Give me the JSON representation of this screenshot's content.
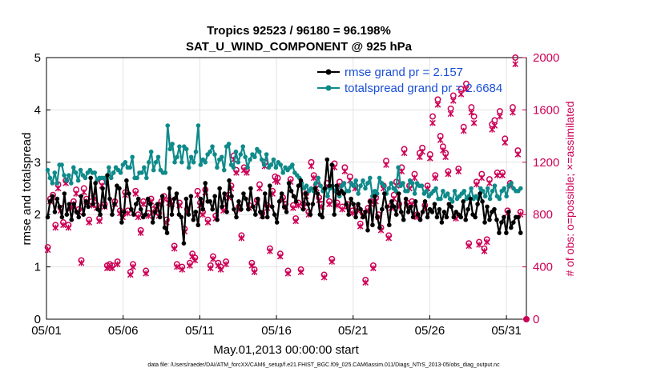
{
  "chart_data": {
    "type": "line",
    "title": "Tropics 92523 / 96180 = 96.198%",
    "subtitle": "SAT_U_WIND_COMPONENT @ 925 hPa",
    "xlabel": "May.01,2013 00:00:00 start",
    "ylabel": "rmse and totalspread",
    "y2label": "# of obs: o=possible; ×=assimilated",
    "xlim": [
      0,
      31.3
    ],
    "ylim": [
      0,
      5
    ],
    "y2lim": [
      0,
      2000
    ],
    "xticks": [
      0,
      5,
      10,
      15,
      20,
      25,
      30
    ],
    "xtick_labels": [
      "05/01",
      "05/06",
      "05/11",
      "05/16",
      "05/21",
      "05/26",
      "05/31"
    ],
    "yticks": [
      "0",
      "1",
      "2",
      "3",
      "4",
      "5"
    ],
    "y2ticks": [
      "0",
      "400",
      "800",
      "1200",
      "1600",
      "2000"
    ],
    "footnote": "data file: /Users/raeder/DAI/ATM_forcXX/CAM6_setup/f.e21.FHIST_BGC.f09_025.CAM6assim.011/Diags_NTrS_2013-05/obs_diag_output.nc",
    "grid": true,
    "legend_position": "top-right",
    "colors": {
      "rmse": "#000000",
      "spread": "#0f8a8a",
      "obs": "#cc0055",
      "legend_text": "#1a4fd6"
    },
    "series": [
      {
        "name": "rmse grand pr = 2.157",
        "axis": "left",
        "values": [
          1.95,
          2.25,
          2.35,
          2.05,
          2.3,
          2.15,
          1.95,
          2.4,
          2.0,
          2.2,
          1.9,
          2.2,
          2.05,
          1.95,
          2.35,
          2.0,
          2.25,
          2.15,
          2.7,
          2.2,
          2.6,
          2.1,
          2.0,
          2.5,
          2.15,
          2.75,
          2.3,
          2.0,
          2.2,
          2.55,
          2.5,
          1.85,
          2.05,
          2.65,
          2.4,
          2.1,
          2.0,
          2.2,
          2.3,
          2.1,
          1.95,
          2.0,
          2.3,
          2.2,
          1.85,
          2.05,
          2.2,
          1.95,
          2.35,
          1.75,
          1.65,
          2.5,
          2.0,
          2.3,
          2.4,
          2.0,
          1.95,
          1.45,
          2.3,
          2.0,
          2.35,
          1.9,
          2.05,
          1.8,
          2.3,
          2.1,
          2.6,
          2.25,
          2.25,
          2.1,
          2.35,
          1.9,
          2.5,
          2.15,
          2.4,
          2.05,
          2.65,
          2.35,
          2.1,
          1.95,
          2.25,
          2.1,
          2.4,
          2.3,
          2.1,
          2.5,
          2.15,
          2.0,
          2.3,
          2.05,
          1.95,
          2.4,
          1.95,
          2.55,
          2.15,
          2.0,
          1.85,
          2.25,
          2.4,
          2.15,
          2.05,
          2.6,
          2.45,
          2.35,
          2.25,
          2.55,
          2.65,
          2.1,
          2.4,
          2.2,
          2.0,
          2.2,
          2.5,
          2.4,
          2.0,
          1.95,
          2.5,
          3.05,
          2.55,
          2.95,
          2.0,
          2.55,
          2.4,
          2.45,
          2.4,
          2.2,
          2.0,
          2.3,
          2.2,
          1.95,
          2.2,
          2.1,
          1.95,
          2.05,
          1.7,
          2.25,
          1.8,
          2.35,
          1.95,
          1.75,
          2.1,
          2.4,
          2.15,
          1.8,
          2.25,
          2.15,
          2.0,
          2.4,
          2.05,
          1.9,
          2.3,
          2.05,
          2.15,
          1.95,
          2.25,
          2.0,
          1.9,
          2.05,
          2.25,
          1.95,
          2.1,
          2.05,
          2.2,
          1.95,
          2.1,
          1.85,
          2.05,
          1.95,
          2.2,
          2.15,
          1.95,
          2.05,
          2.0,
          1.95,
          2.25,
          1.9,
          2.1,
          2.3,
          2.0,
          1.95,
          2.2,
          2.4,
          2.25,
          1.85,
          2.15,
          1.9,
          2.05,
          2.1,
          1.9,
          1.65,
          1.85,
          1.95,
          1.65,
          2.05,
          1.75,
          1.85,
          1.95,
          1.95,
          1.65
        ]
      },
      {
        "name": "totalspread grand pr = 2.6684",
        "axis": "left",
        "values": [
          2.85,
          2.7,
          2.6,
          2.8,
          2.6,
          2.95,
          2.95,
          2.75,
          2.65,
          2.75,
          2.6,
          2.9,
          2.8,
          2.65,
          2.85,
          2.75,
          2.7,
          2.8,
          2.85,
          2.8,
          2.8,
          2.65,
          2.7,
          2.7,
          2.7,
          2.6,
          2.9,
          2.7,
          2.8,
          2.9,
          2.85,
          2.8,
          2.95,
          3.0,
          2.9,
          2.9,
          3.1,
          2.7,
          2.7,
          2.8,
          2.8,
          2.9,
          2.7,
          3.0,
          3.2,
          2.85,
          3.0,
          3.1,
          2.85,
          2.8,
          2.8,
          3.7,
          3.25,
          3.35,
          3.0,
          3.1,
          3.3,
          3.0,
          3.3,
          3.25,
          2.9,
          3.1,
          3.0,
          3.2,
          3.7,
          2.95,
          3.05,
          3.0,
          3.15,
          3.2,
          3.3,
          3.15,
          2.9,
          3.05,
          3.1,
          2.85,
          3.3,
          3.35,
          2.95,
          2.9,
          3.2,
          3.0,
          3.15,
          3.3,
          3.1,
          2.9,
          3.05,
          3.15,
          3.1,
          3.25,
          3.2,
          3.05,
          2.95,
          3.15,
          2.9,
          2.95,
          3.05,
          2.9,
          3.0,
          2.95,
          2.8,
          2.9,
          2.85,
          2.9,
          2.95,
          2.8,
          2.75,
          2.7,
          2.6,
          2.5,
          2.55,
          2.45,
          2.5,
          2.45,
          2.6,
          2.7,
          2.55,
          2.45,
          2.5,
          2.35,
          2.5,
          2.55,
          2.45,
          2.5,
          2.35,
          2.55,
          2.6,
          2.45,
          2.45,
          2.6,
          2.55,
          2.65,
          2.4,
          2.55,
          2.65,
          2.5,
          2.6,
          2.7,
          2.35,
          2.45,
          2.4,
          2.7,
          2.6,
          2.55,
          2.4,
          2.5,
          2.6,
          2.5,
          2.45,
          2.9,
          2.55,
          2.6,
          2.45,
          2.45,
          2.65,
          2.6,
          2.4,
          2.6,
          2.55,
          2.55,
          2.4,
          2.45,
          2.35,
          2.4,
          2.45,
          2.5,
          2.3,
          2.3,
          2.45,
          2.35,
          2.4,
          2.3,
          2.25,
          2.45,
          2.3,
          2.35,
          2.4,
          2.45,
          2.3,
          2.35,
          2.5,
          2.3,
          2.35,
          2.3,
          2.5,
          2.45,
          2.35,
          2.5,
          2.3,
          2.45,
          2.55,
          2.35,
          2.3,
          2.45,
          2.5,
          2.35,
          2.55,
          2.6,
          2.5,
          2.45,
          2.45,
          2.5
        ]
      },
      {
        "name": "possible",
        "axis": "right",
        "marker": "o",
        "values": [
          550,
          920,
          950,
          720,
          1030,
          850,
          740,
          1060,
          720,
          870,
          900,
          990,
          840,
          450,
          1000,
          920,
          760,
          900,
          940,
          870,
          770,
          1050,
          880,
          410,
          420,
          410,
          900,
          440,
          830,
          800,
          970,
          830,
          360,
          420,
          980,
          800,
          680,
          900,
          370,
          810,
          920,
          840,
          860,
          810,
          900,
          940,
          760,
          910,
          900,
          560,
          420,
          890,
          400,
          690,
          840,
          430,
          500,
          470,
          980,
          890,
          820,
          990,
          760,
          410,
          480,
          790,
          430,
          400,
          850,
          440,
          950,
          1020,
          1250,
          1140,
          860,
          640,
          1160,
          1140,
          870,
          430,
          380,
          910,
          1030,
          810,
          1200,
          870,
          540,
          980,
          1090,
          1080,
          500,
          930,
          880,
          370,
          1070,
          870,
          770,
          890,
          380,
          880,
          960,
          820,
          1200,
          1100,
          1030,
          930,
          880,
          340,
          1040,
          900,
          460,
          1190,
          890,
          1050,
          860,
          1160,
          880,
          1090,
          830,
          1020,
          850,
          730,
          810,
          300,
          850,
          900,
          410,
          930,
          800,
          700,
          1020,
          1210,
          640,
          870,
          950,
          1050,
          880,
          1160,
          1300,
          890,
          1020,
          900,
          1110,
          800,
          1270,
          1310,
          870,
          1020,
          1260,
          1550,
          1100,
          1680,
          1400,
          1320,
          1270,
          1130,
          1610,
          1710,
          790,
          1150,
          1760,
          1470,
          1800,
          580,
          1620,
          1550,
          1050,
          590,
          1110,
          540,
          610,
          1070,
          1490,
          1520,
          1120,
          1590,
          1120,
          1380,
          830,
          1040,
          1620,
          2000,
          1290,
          820
        ]
      },
      {
        "name": "assimilated",
        "axis": "right",
        "marker": "x",
        "values": [
          530,
          900,
          930,
          700,
          1000,
          830,
          720,
          1040,
          700,
          850,
          880,
          960,
          820,
          430,
          970,
          900,
          740,
          870,
          920,
          850,
          750,
          1020,
          860,
          390,
          400,
          390,
          880,
          420,
          810,
          780,
          950,
          810,
          340,
          400,
          960,
          780,
          660,
          880,
          350,
          790,
          900,
          820,
          840,
          790,
          880,
          920,
          740,
          890,
          880,
          540,
          400,
          870,
          380,
          670,
          820,
          410,
          480,
          450,
          950,
          870,
          800,
          970,
          740,
          390,
          460,
          770,
          410,
          380,
          830,
          420,
          930,
          1000,
          1220,
          1120,
          840,
          620,
          1140,
          1120,
          850,
          410,
          360,
          890,
          1000,
          790,
          1170,
          850,
          520,
          960,
          1060,
          1050,
          480,
          910,
          860,
          350,
          1050,
          850,
          750,
          870,
          360,
          860,
          940,
          800,
          1170,
          1080,
          1000,
          910,
          860,
          320,
          1010,
          880,
          440,
          1160,
          870,
          1020,
          840,
          1130,
          860,
          1060,
          810,
          1000,
          830,
          710,
          790,
          280,
          830,
          880,
          390,
          900,
          780,
          680,
          1000,
          1180,
          620,
          850,
          920,
          1020,
          860,
          1130,
          1270,
          870,
          1000,
          880,
          1080,
          780,
          1240,
          1280,
          850,
          1000,
          1230,
          1500,
          1080,
          1640,
          1370,
          1290,
          1240,
          1110,
          1570,
          1670,
          770,
          1130,
          1720,
          1440,
          1760,
          560,
          1580,
          1500,
          1030,
          570,
          1080,
          520,
          590,
          1040,
          1450,
          1480,
          1100,
          1550,
          1100,
          1350,
          810,
          1020,
          1580,
          1950,
          1260,
          800
        ]
      }
    ]
  }
}
